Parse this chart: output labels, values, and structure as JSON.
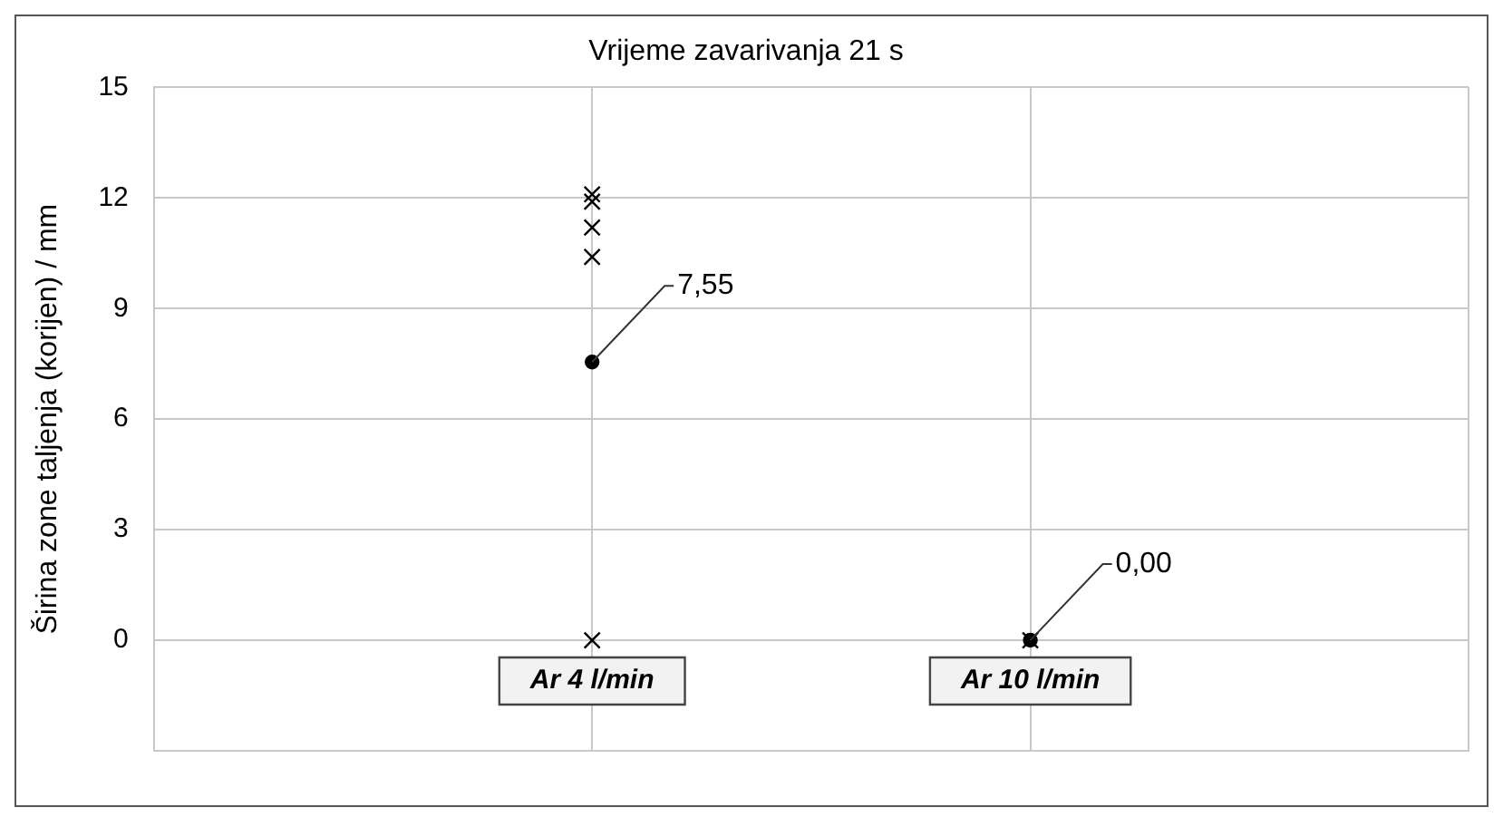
{
  "chart_data": {
    "type": "scatter",
    "title": "Vrijeme zavarivanja 21 s",
    "ylabel": "Širina zone taljenja (korijen) / mm",
    "categories": [
      "Ar 4 l/min",
      "Ar 10 l/min"
    ],
    "series": [
      {
        "marker": "cross",
        "color": "#000000",
        "x": [
          "Ar 4 l/min",
          "Ar 4 l/min",
          "Ar 4 l/min",
          "Ar 4 l/min",
          "Ar 4 l/min",
          "Ar 10 l/min"
        ],
        "values": [
          12.1,
          11.9,
          11.2,
          10.4,
          0,
          0
        ]
      },
      {
        "marker": "circle",
        "color": "#000000",
        "values": [
          7.55,
          0
        ],
        "value_labels": [
          "7,55",
          "0,00"
        ]
      }
    ],
    "ylim": [
      -3,
      15
    ],
    "yticks": [
      0,
      3,
      6,
      9,
      12,
      15
    ],
    "grid": true,
    "legend": false
  }
}
